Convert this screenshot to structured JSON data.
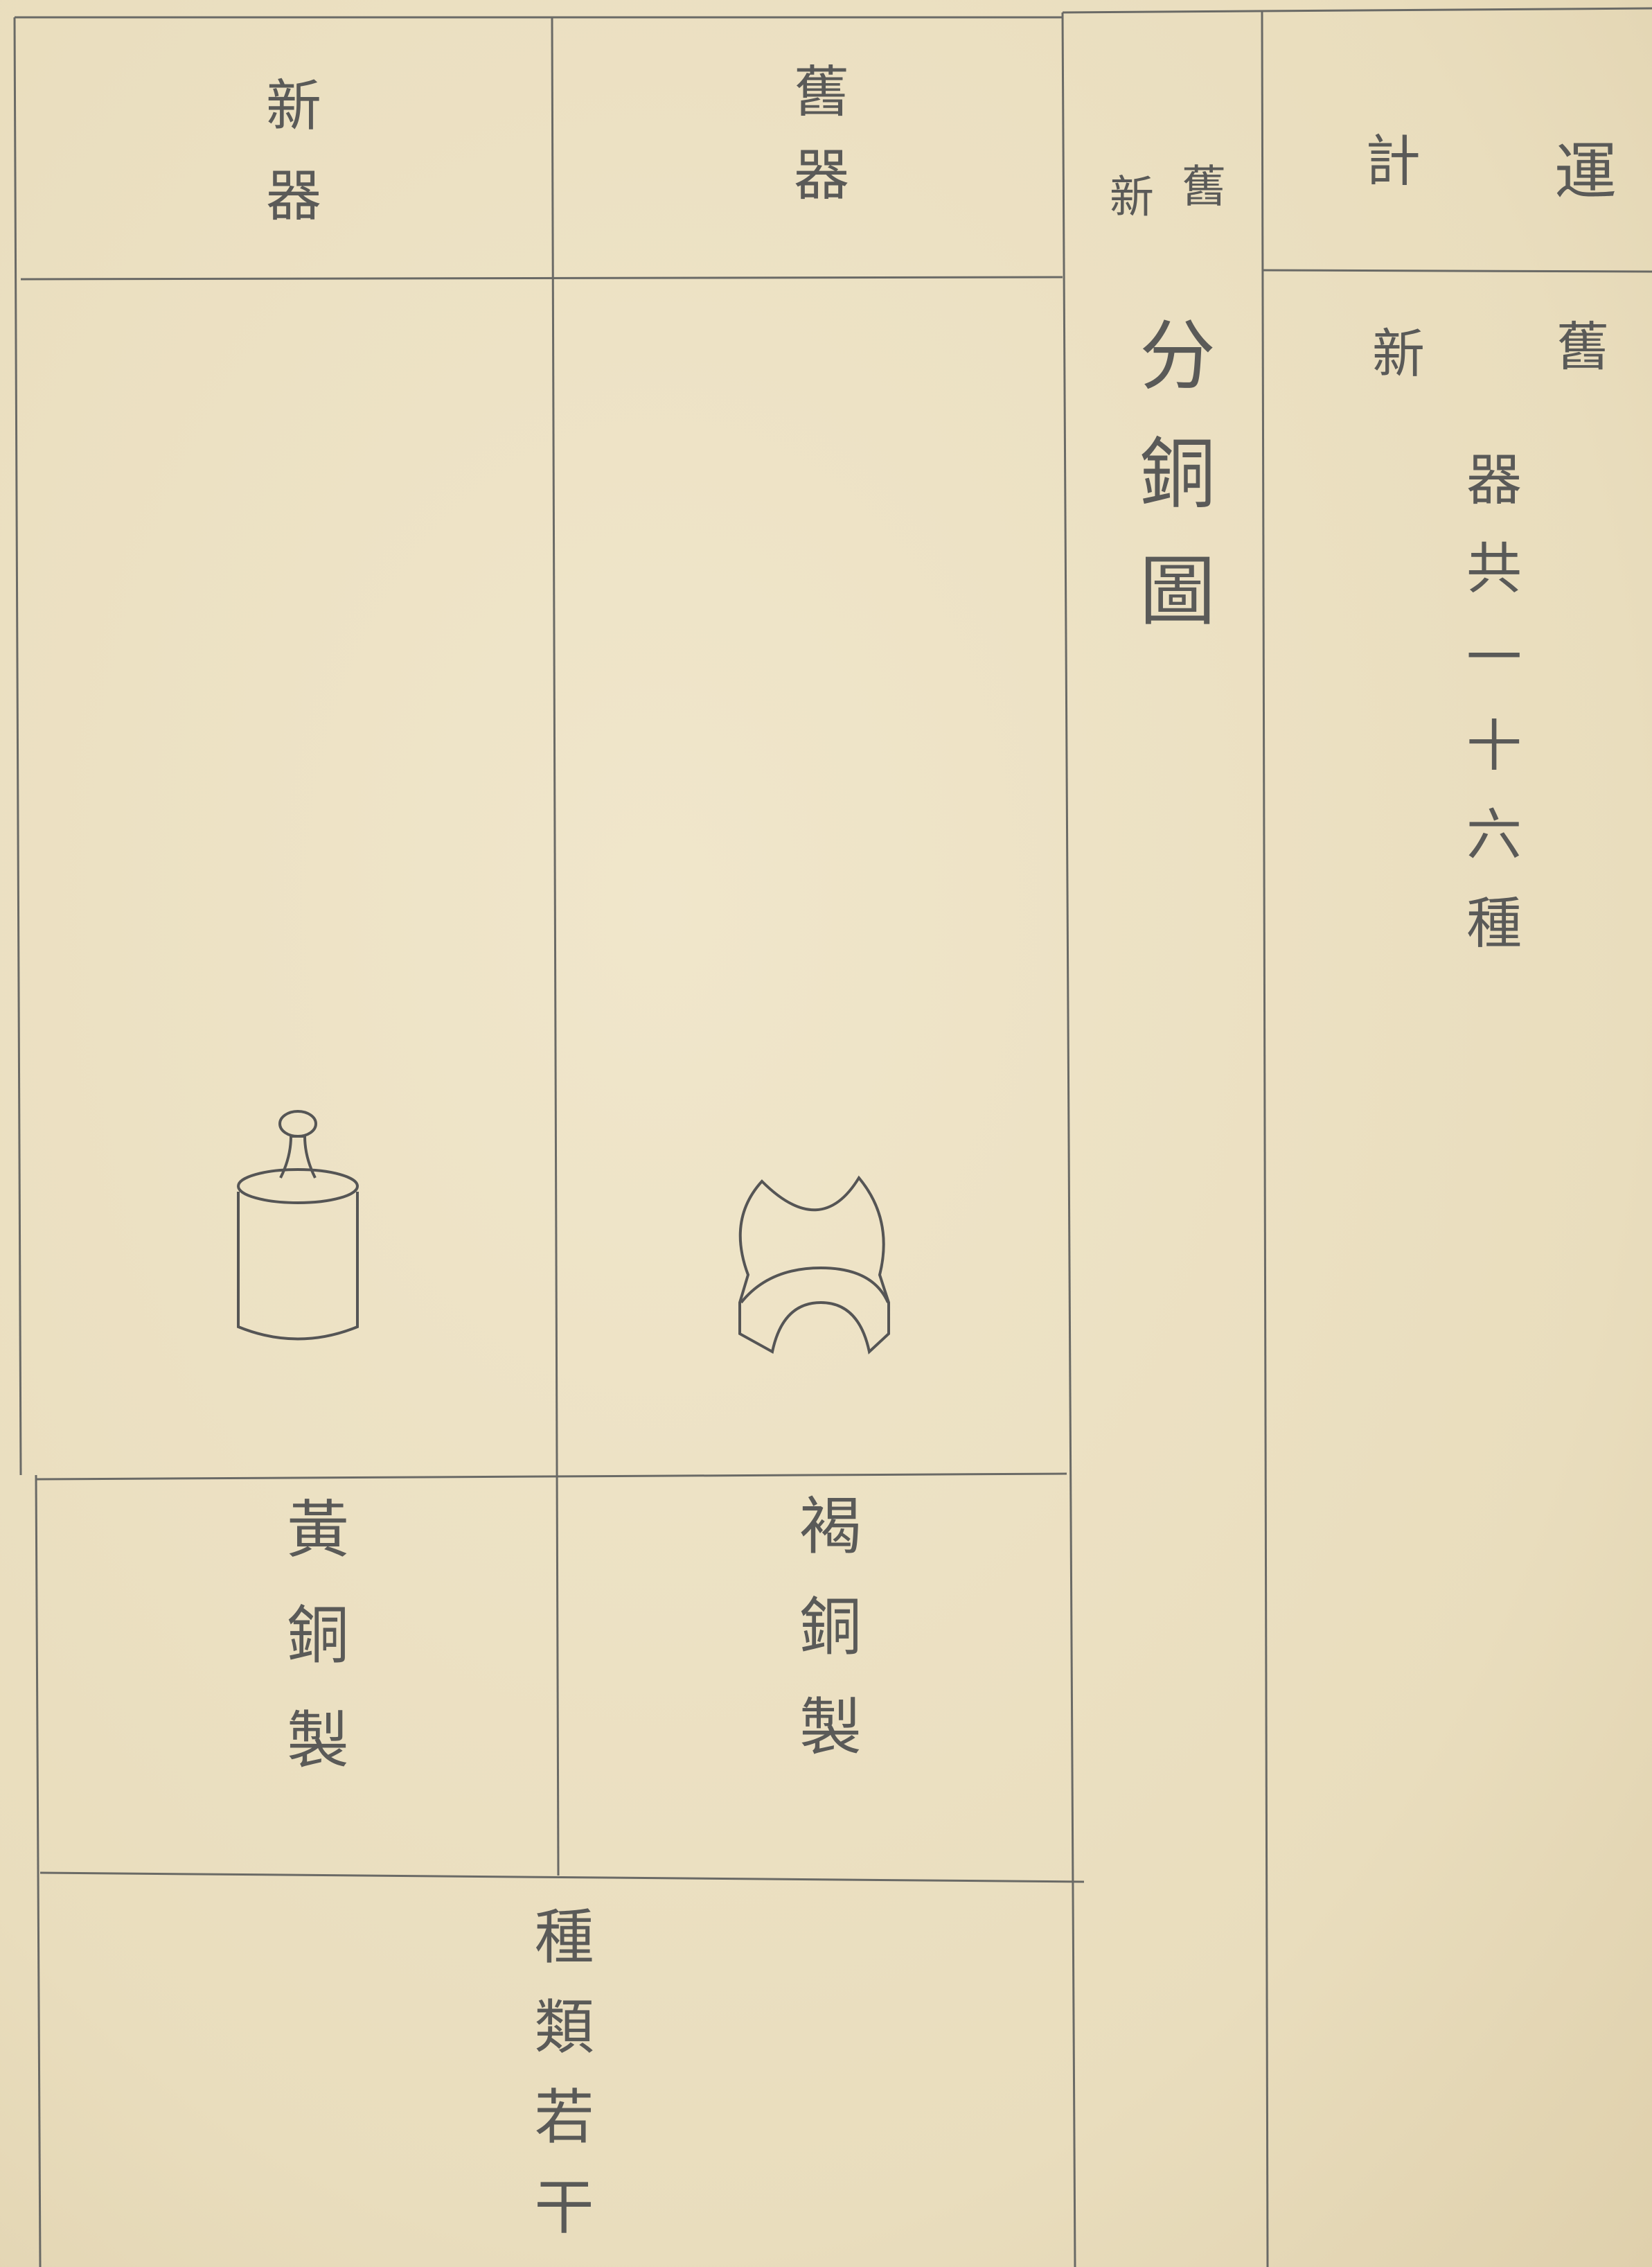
{
  "header": {
    "columns": [
      "新器",
      "舊器"
    ]
  },
  "title": {
    "note": [
      "舊",
      "新"
    ],
    "main": "分銅圖"
  },
  "summary": {
    "heading": [
      "運",
      "計"
    ],
    "note": [
      "舊",
      "新"
    ],
    "text": "器共一十六種"
  },
  "table": {
    "materials": [
      "黃銅製",
      "褐銅製"
    ],
    "footer": "種類若干"
  }
}
